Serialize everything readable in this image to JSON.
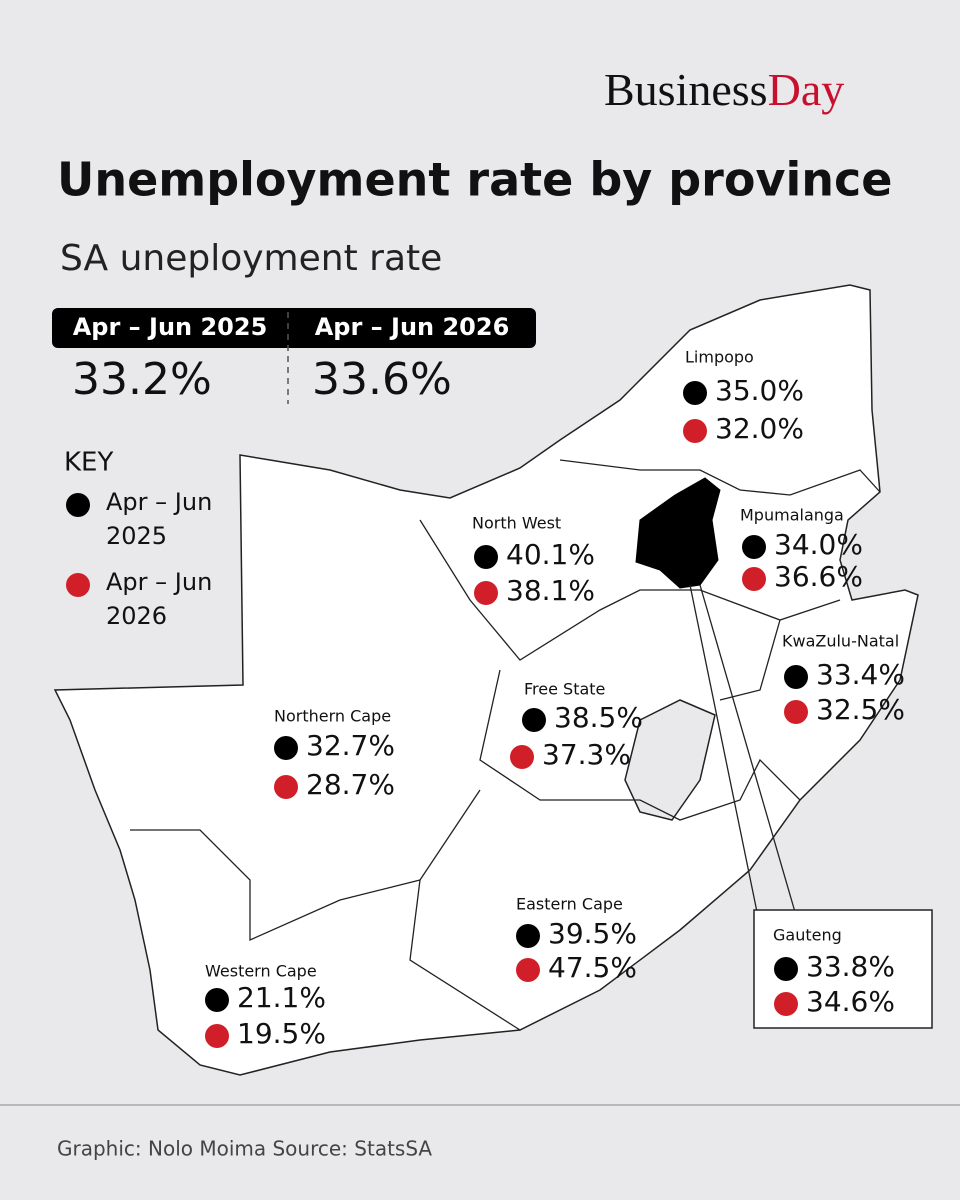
{
  "brand": {
    "first": "Business",
    "second": "Day"
  },
  "title": "Unemployment rate by province",
  "subtitle": "SA uneployment rate",
  "national": [
    {
      "period": "Apr – Jun 2025",
      "rate": "33.2%"
    },
    {
      "period": "Apr – Jun 2026",
      "rate": "33.6%"
    }
  ],
  "key": {
    "title": "KEY",
    "items": [
      {
        "label": "Apr – Jun",
        "year": "2025",
        "color": "#000000"
      },
      {
        "label": "Apr – Jun",
        "year": "2026",
        "color": "#d11f2a"
      }
    ]
  },
  "provinces": [
    {
      "name": "Limpopo",
      "values": [
        "35.0%",
        "32.0%"
      ]
    },
    {
      "name": "North West",
      "values": [
        "40.1%",
        "38.1%"
      ]
    },
    {
      "name": "Mpumalanga",
      "values": [
        "34.0%",
        "36.6%"
      ]
    },
    {
      "name": "KwaZulu-Natal",
      "values": [
        "33.4%",
        "32.5%"
      ]
    },
    {
      "name": "Free State",
      "values": [
        "38.5%",
        "37.3%"
      ]
    },
    {
      "name": "Northern Cape",
      "values": [
        "32.7%",
        "28.7%"
      ]
    },
    {
      "name": "Eastern Cape",
      "values": [
        "39.5%",
        "47.5%"
      ]
    },
    {
      "name": "Western Cape",
      "values": [
        "21.1%",
        "19.5%"
      ]
    },
    {
      "name": "Gauteng",
      "values": [
        "33.8%",
        "34.6%"
      ]
    }
  ],
  "footer": "Graphic: Nolo Moima Source: StatsSA"
}
